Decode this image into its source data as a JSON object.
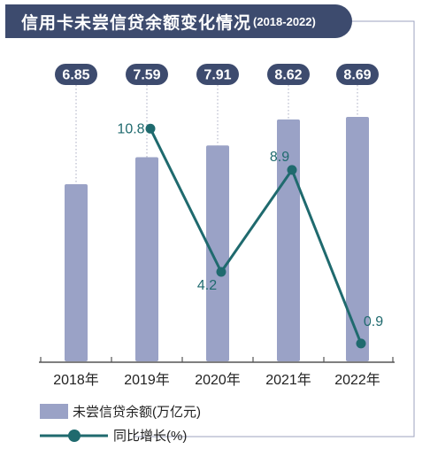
{
  "title": "信用卡未尝信贷余额变化情况",
  "subtitle": "(2018-2022)",
  "colors": {
    "header": "#3d4b6e",
    "bar": "#9aa2c6",
    "line": "#1f6a6e",
    "value_badge": "#3d4b6e",
    "frame": "#9ea3bf"
  },
  "chart_data": {
    "type": "bar",
    "categories": [
      "2018年",
      "2019年",
      "2020年",
      "2021年",
      "2022年"
    ],
    "series": [
      {
        "name": "未尝信贷余额(万亿元)",
        "type": "bar",
        "values": [
          6.85,
          7.59,
          7.91,
          8.62,
          8.69
        ]
      },
      {
        "name": "同比增长(%)",
        "type": "line",
        "values": [
          null,
          10.8,
          4.2,
          8.9,
          0.9
        ]
      }
    ],
    "bar_labels": [
      "6.85",
      "7.59",
      "7.91",
      "8.62",
      "8.69"
    ],
    "line_labels": [
      "",
      "10.8",
      "4.2",
      "8.9",
      "0.9"
    ],
    "grid": false,
    "legend_position": "bottom-left"
  },
  "legend": [
    {
      "label": "未尝信贷余额(万亿元)"
    },
    {
      "label": "同比增长(%)"
    }
  ]
}
